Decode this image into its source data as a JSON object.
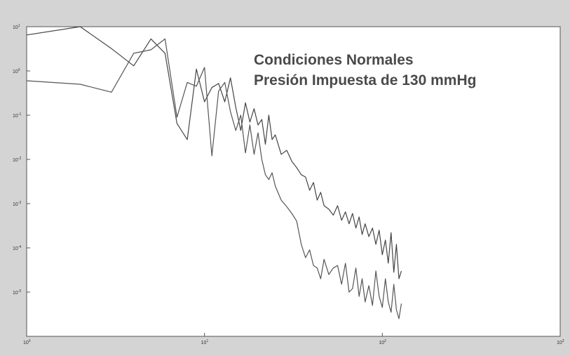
{
  "chart_data": {
    "type": "line",
    "title": "",
    "xlabel": "",
    "ylabel": "",
    "xscale": "log",
    "yscale": "log",
    "xlim": [
      1,
      1000
    ],
    "ylim": [
      1e-06,
      10
    ],
    "grid": false,
    "x_tick_labels": [
      {
        "value": 1,
        "base": "10",
        "exp": "0"
      },
      {
        "value": 10,
        "base": "10",
        "exp": "1"
      },
      {
        "value": 100,
        "base": "10",
        "exp": "2"
      },
      {
        "value": 1000,
        "base": "10",
        "exp": "3"
      }
    ],
    "y_tick_labels": [
      {
        "value": 10,
        "base": "10",
        "exp": "1"
      },
      {
        "value": 1,
        "base": "10",
        "exp": "0"
      },
      {
        "value": 0.1,
        "base": "10",
        "exp": "-1"
      },
      {
        "value": 0.01,
        "base": "10",
        "exp": "-2"
      },
      {
        "value": 0.001,
        "base": "10",
        "exp": "-3"
      },
      {
        "value": 0.0001,
        "base": "10",
        "exp": "-4"
      },
      {
        "value": 1e-05,
        "base": "10",
        "exp": "-5"
      }
    ],
    "annotations": [
      "Condiciones Normales",
      "Presión Impuesta de 130 mmHg"
    ],
    "series": [
      {
        "color": "#444444",
        "x": [
          1,
          2,
          3,
          4,
          5,
          6,
          7,
          8,
          9,
          10,
          11,
          12,
          13,
          14,
          15,
          16,
          17,
          18,
          19,
          20,
          21,
          22,
          23,
          24,
          25,
          27,
          29,
          31,
          33,
          35,
          37,
          39,
          41,
          43,
          45,
          47,
          50,
          53,
          56,
          59,
          62,
          65,
          68,
          71,
          74,
          77,
          80,
          84,
          88,
          92,
          96,
          100,
          104,
          108,
          112,
          116,
          120,
          124,
          128
        ],
        "y": [
          6.5,
          10,
          3.2,
          1.3,
          5.3,
          2.5,
          0.065,
          0.028,
          1.1,
          0.2,
          0.42,
          0.52,
          0.2,
          0.7,
          0.15,
          0.045,
          0.19,
          0.07,
          0.14,
          0.06,
          0.08,
          0.022,
          0.1,
          0.028,
          0.036,
          0.013,
          0.016,
          0.009,
          0.0065,
          0.0045,
          0.004,
          0.002,
          0.003,
          0.0012,
          0.0018,
          0.0009,
          0.00075,
          0.00055,
          0.0009,
          0.00042,
          0.00065,
          0.00035,
          0.0006,
          0.00028,
          0.0005,
          0.0002,
          0.00035,
          0.00018,
          0.00028,
          0.00012,
          0.00025,
          7e-05,
          0.00015,
          4.5e-05,
          0.00022,
          2.8e-05,
          0.00012,
          2e-05,
          3e-05
        ]
      },
      {
        "color": "#555555",
        "x": [
          1,
          2,
          3,
          4,
          5,
          6,
          7,
          8,
          9,
          10,
          11,
          12,
          13,
          14,
          15,
          16,
          17,
          18,
          19,
          20,
          21,
          22,
          23,
          24,
          25,
          27,
          29,
          31,
          33,
          35,
          37,
          39,
          41,
          43,
          45,
          47,
          50,
          53,
          56,
          59,
          62,
          65,
          68,
          71,
          74,
          77,
          80,
          84,
          88,
          92,
          96,
          100,
          104,
          108,
          112,
          116,
          120,
          124,
          128
        ],
        "y": [
          0.6,
          0.5,
          0.33,
          2.5,
          3,
          5.3,
          0.09,
          0.55,
          0.45,
          1.2,
          0.012,
          0.35,
          0.55,
          0.12,
          0.045,
          0.1,
          0.014,
          0.06,
          0.013,
          0.04,
          0.01,
          0.0045,
          0.0035,
          0.005,
          0.0025,
          0.0012,
          0.00085,
          0.0006,
          0.0004,
          0.00012,
          6e-05,
          9e-05,
          4e-05,
          3.5e-05,
          2e-05,
          5.5e-05,
          2.5e-05,
          3.5e-05,
          4e-05,
          1.5e-05,
          4.5e-05,
          1e-05,
          1.2e-05,
          3.5e-05,
          8e-06,
          2e-05,
          6e-06,
          1.4e-05,
          5e-06,
          3e-05,
          8e-06,
          4.5e-06,
          2e-05,
          6e-06,
          3.5e-06,
          1.5e-05,
          4e-06,
          2.5e-06,
          5.5e-06
        ]
      }
    ]
  }
}
